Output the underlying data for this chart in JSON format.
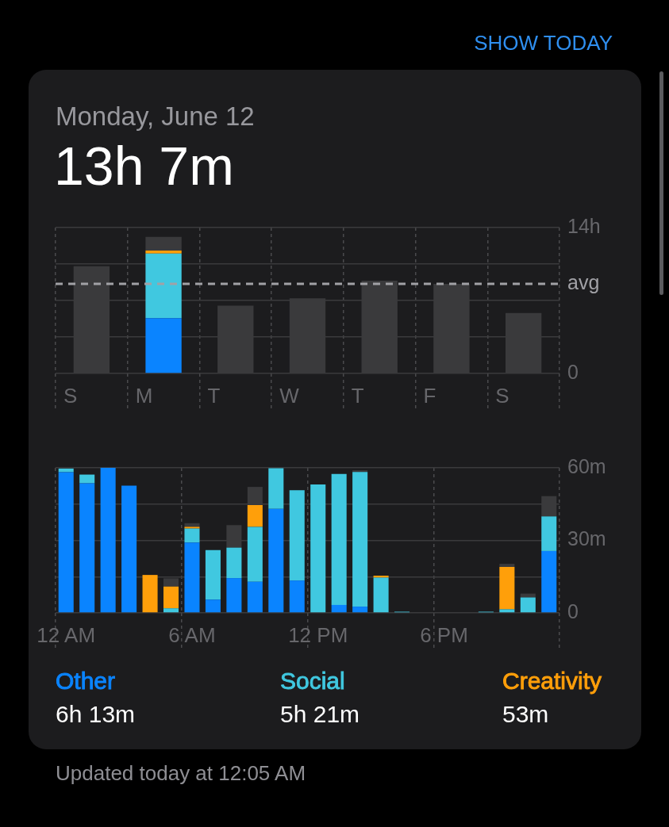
{
  "chart_data": [
    {
      "type": "bar",
      "title": "Monday, June 12",
      "subtitle": "13h 7m",
      "annotations": [
        "SHOW TODAY"
      ],
      "categories": [
        "S",
        "M",
        "T",
        "W",
        "T",
        "F",
        "S"
      ],
      "series": [
        {
          "color": "#0a84ff",
          "values": [
            null,
            5.3,
            null,
            null,
            null,
            null,
            null
          ]
        },
        {
          "color": "#40c8e0",
          "values": [
            null,
            6.2,
            null,
            null,
            null,
            null,
            null
          ]
        },
        {
          "color": "#ff9f0a",
          "values": [
            null,
            0.3,
            null,
            null,
            null,
            null,
            null
          ]
        },
        {
          "color": "#3a3a3c",
          "values": [
            10.3,
            1.3,
            6.5,
            7.2,
            8.9,
            8.6,
            5.8
          ]
        }
      ],
      "stacked": true,
      "ylim": [
        0,
        14
      ],
      "yticks": [
        0,
        {
          "value": 3.5,
          "label": null
        },
        {
          "value": 7,
          "label": null
        },
        {
          "value": 10.5,
          "label": null
        },
        {
          "value": 14,
          "label": "14h"
        }
      ],
      "grid": true,
      "ref_lines": [
        {
          "axis": "y",
          "value": 8.6,
          "label": "avg",
          "color": "#a1a1a6",
          "line_style": "dashed"
        }
      ]
    },
    {
      "type": "bar",
      "categories": [
        "12 AM",
        null,
        null,
        null,
        null,
        null,
        "6 AM",
        null,
        null,
        null,
        null,
        null,
        "12 PM",
        null,
        null,
        null,
        null,
        null,
        "6 PM",
        null,
        null,
        null,
        null,
        null
      ],
      "series": [
        {
          "name": "Other",
          "color": "#0a84ff",
          "values": [
            58.2,
            53.6,
            60,
            52.6,
            null,
            null,
            29.1,
            5.5,
            14.4,
            12.9,
            43.0,
            13.4,
            null,
            3.3,
            2.6,
            null,
            null,
            null,
            null,
            null,
            null,
            null,
            null,
            25.6
          ]
        },
        {
          "name": "Social",
          "color": "#40c8e0",
          "values": [
            1.5,
            3.6,
            null,
            null,
            null,
            1.9,
            5.8,
            20.5,
            12.6,
            22.7,
            16.8,
            37.3,
            53.1,
            54.2,
            55.7,
            14.6,
            0.5,
            null,
            null,
            null,
            0.5,
            1.5,
            6.4,
            14.3
          ]
        },
        {
          "name": "Creativity",
          "color": "#ff9f0a",
          "values": [
            null,
            null,
            null,
            null,
            15.7,
            9.0,
            0.7,
            null,
            null,
            9.0,
            null,
            null,
            null,
            null,
            null,
            0.8,
            null,
            null,
            null,
            null,
            null,
            17.5,
            null,
            null
          ]
        },
        {
          "color": "#3a3a3c",
          "values": [
            null,
            null,
            null,
            null,
            null,
            3.4,
            1.5,
            null,
            9.3,
            7.5,
            null,
            null,
            null,
            null,
            0.7,
            null,
            null,
            null,
            null,
            null,
            null,
            1.3,
            1.6,
            8.4
          ]
        }
      ],
      "stacked": true,
      "ylim": [
        0,
        60
      ],
      "yticks": [
        0,
        {
          "value": 15,
          "label": null
        },
        {
          "value": 30,
          "label": "30m"
        },
        {
          "value": 45,
          "label": null
        },
        {
          "value": 60,
          "label": "60m"
        }
      ],
      "grid": true,
      "legend": "bottom",
      "annotations": [
        "6h 13m",
        "5h 21m",
        "53m",
        "Updated today at 12:05 AM"
      ]
    }
  ]
}
